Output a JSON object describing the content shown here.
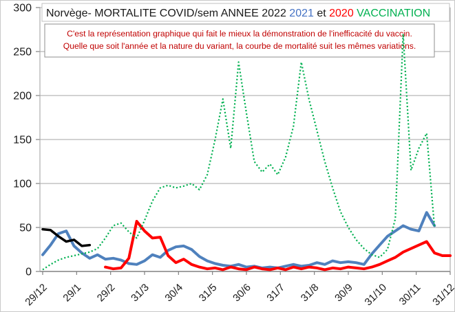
{
  "title": {
    "parts": [
      {
        "text": "Norvège- MORTALITE COVID/sem  ANNEE 2022 ",
        "color": "#1a1a1a"
      },
      {
        "text": "2021",
        "color": "#4472c4"
      },
      {
        "text": " et ",
        "color": "#1a1a1a"
      },
      {
        "text": "2020",
        "color": "#ff0000"
      },
      {
        "text": " VACCINATION",
        "color": "#00b050"
      }
    ]
  },
  "annotation": {
    "color": "#c00000",
    "lines": [
      "C'est la représentation graphique qui fait le mieux la démonstration de l'inefficacité du vaccin.",
      "Quelle que soit l'année et la nature du variant, la courbe de mortalité suit les mêmes variations."
    ]
  },
  "chart_data": {
    "type": "line",
    "title": "Norvège- MORTALITE COVID/sem ANNEE 2022 2021 et 2020 VACCINATION",
    "xlabel": "",
    "ylabel": "",
    "ylim": [
      0,
      300
    ],
    "y_ticks": [
      0,
      50,
      100,
      150,
      200,
      250,
      300
    ],
    "x_unit": "week-of-year (0-52)",
    "x_tick_labels": [
      "29/12",
      "29/1",
      "29/2",
      "31/3",
      "30/4",
      "31/5",
      "30/6",
      "31/7",
      "31/8",
      "30/9",
      "31/10",
      "30/11",
      "31/12"
    ],
    "grid": true,
    "legend": "in-title (colored words)",
    "series": [
      {
        "name": "2021",
        "color": "#4f81bd",
        "style": "solid",
        "width": 4,
        "start_week": 0,
        "values": [
          19,
          30,
          43,
          46,
          29,
          21,
          15,
          19,
          14,
          15,
          13,
          9,
          8,
          12,
          19,
          16,
          24,
          28,
          29,
          25,
          17,
          12,
          9,
          7,
          6,
          8,
          5,
          6,
          4,
          5,
          4,
          6,
          8,
          6,
          7,
          10,
          8,
          12,
          10,
          11,
          10,
          8,
          20,
          30,
          40,
          46,
          52,
          48,
          46,
          67,
          52
        ]
      },
      {
        "name": "2020",
        "color": "#ff0000",
        "style": "solid",
        "width": 4,
        "start_week": 8,
        "values": [
          5,
          3,
          4,
          15,
          57,
          46,
          38,
          39,
          18,
          10,
          14,
          8,
          5,
          3,
          4,
          2,
          5,
          3,
          2,
          5,
          3,
          2,
          4,
          2,
          5,
          3,
          5,
          4,
          2,
          4,
          3,
          5,
          4,
          3,
          5,
          8,
          12,
          16,
          22,
          26,
          30,
          34,
          21,
          18,
          18
        ]
      },
      {
        "name": "2022",
        "color": "#000000",
        "style": "solid",
        "width": 3.5,
        "start_week": 0,
        "values": [
          48,
          47,
          40,
          34,
          36,
          29,
          30
        ]
      },
      {
        "name": "VACCINATION",
        "color": "#00b050",
        "style": "dotted",
        "width": 2.2,
        "start_week": 0,
        "values": [
          2,
          8,
          13,
          16,
          18,
          20,
          22,
          26,
          38,
          52,
          55,
          45,
          38,
          58,
          80,
          95,
          98,
          95,
          97,
          100,
          93,
          110,
          150,
          196,
          140,
          238,
          180,
          125,
          113,
          122,
          110,
          130,
          165,
          238,
          195,
          160,
          125,
          95,
          68,
          50,
          36,
          26,
          19,
          16,
          25,
          60,
          270,
          115,
          140,
          157,
          50
        ]
      }
    ]
  },
  "colors": {
    "grid": "#a6a6a6",
    "axis": "#808080",
    "tick_label": "#1a1a1a",
    "box_border": "#8c8c8c",
    "title_box_border": "#c0c0c0",
    "background": "#ffffff"
  }
}
